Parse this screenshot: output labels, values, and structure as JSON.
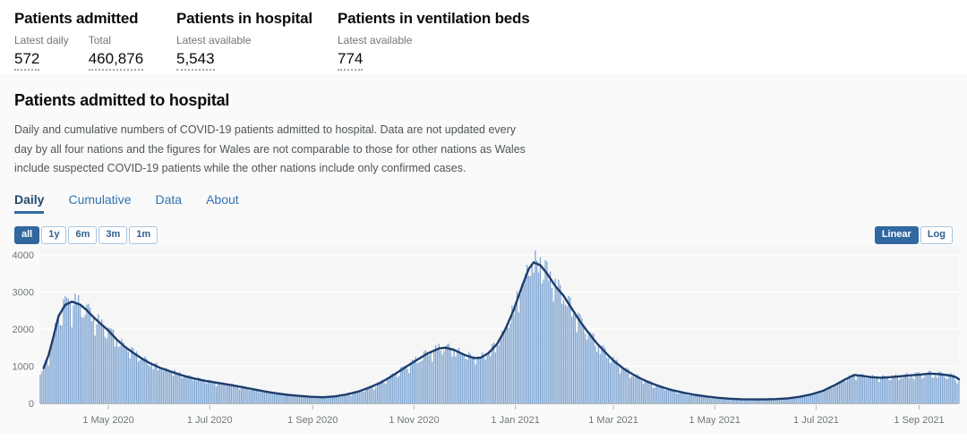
{
  "summary": {
    "cards": [
      {
        "title": "Patients admitted",
        "metrics": [
          {
            "label": "Latest daily",
            "value": "572"
          },
          {
            "label": "Total",
            "value": "460,876"
          }
        ]
      },
      {
        "title": "Patients in hospital",
        "metrics": [
          {
            "label": "Latest available",
            "value": "5,543"
          }
        ]
      },
      {
        "title": "Patients in ventilation beds",
        "metrics": [
          {
            "label": "Latest available",
            "value": "774"
          }
        ]
      }
    ]
  },
  "panel": {
    "title": "Patients admitted to hospital",
    "description": "Daily and cumulative numbers of COVID-19 patients admitted to hospital. Data are not updated every day by all four nations and the figures for Wales are not comparable to those for other nations as Wales include suspected COVID-19 patients while the other nations include only confirmed cases.",
    "tabs": [
      {
        "label": "Daily",
        "active": true
      },
      {
        "label": "Cumulative",
        "active": false
      },
      {
        "label": "Data",
        "active": false
      },
      {
        "label": "About",
        "active": false
      }
    ],
    "range_buttons": [
      {
        "label": "all",
        "active": true
      },
      {
        "label": "1y",
        "active": false
      },
      {
        "label": "6m",
        "active": false
      },
      {
        "label": "3m",
        "active": false
      },
      {
        "label": "1m",
        "active": false
      }
    ],
    "scale_buttons": [
      {
        "label": "Linear",
        "active": true
      },
      {
        "label": "Log",
        "active": false
      }
    ]
  },
  "colors": {
    "accent_active": "#31689f",
    "link_blue": "#3173b2",
    "tab_active_text": "#24496e",
    "tab_underline": "#2e6ca5"
  },
  "chart_data": {
    "type": "bar",
    "title": "Daily COVID-19 patients admitted to hospital (bars: daily, line: 7-day average)",
    "x_start": "2020-03-21",
    "x_end": "2021-09-25",
    "ylim": [
      0,
      4000
    ],
    "yticks": [
      0,
      1000,
      2000,
      3000,
      4000
    ],
    "xticks": [
      "2020-05-01",
      "2020-07-01",
      "2020-09-01",
      "2020-11-01",
      "2021-01-01",
      "2021-03-01",
      "2021-05-01",
      "2021-07-01",
      "2021-09-01"
    ],
    "xtick_labels": [
      "1 May 2020",
      "1 Jul 2020",
      "1 Sep 2020",
      "1 Nov 2020",
      "1 Jan 2021",
      "1 Mar 2021",
      "1 May 2021",
      "1 Jul 2021",
      "1 Sep 2021"
    ],
    "grid": true,
    "legend": "none",
    "colors": {
      "bars": "#7fa6d3",
      "line": "#1d3d6b",
      "plot_bg": "#f6f6f7",
      "grid": "#ffffff",
      "axis": "#b1b4b6",
      "tick_text": "#6e767a"
    },
    "series": [
      {
        "name": "7-day-average-line",
        "type": "line",
        "points": [
          [
            "2020-03-23",
            950
          ],
          [
            "2020-03-26",
            1300
          ],
          [
            "2020-03-29",
            1800
          ],
          [
            "2020-04-01",
            2350
          ],
          [
            "2020-04-05",
            2650
          ],
          [
            "2020-04-09",
            2740
          ],
          [
            "2020-04-14",
            2660
          ],
          [
            "2020-04-18",
            2510
          ],
          [
            "2020-04-22",
            2320
          ],
          [
            "2020-04-26",
            2160
          ],
          [
            "2020-05-01",
            1960
          ],
          [
            "2020-05-06",
            1720
          ],
          [
            "2020-05-11",
            1520
          ],
          [
            "2020-05-16",
            1360
          ],
          [
            "2020-05-21",
            1210
          ],
          [
            "2020-05-26",
            1080
          ],
          [
            "2020-06-01",
            960
          ],
          [
            "2020-06-08",
            850
          ],
          [
            "2020-06-15",
            745
          ],
          [
            "2020-06-22",
            665
          ],
          [
            "2020-06-29",
            600
          ],
          [
            "2020-07-06",
            550
          ],
          [
            "2020-07-13",
            500
          ],
          [
            "2020-07-20",
            440
          ],
          [
            "2020-07-27",
            380
          ],
          [
            "2020-08-03",
            320
          ],
          [
            "2020-08-10",
            270
          ],
          [
            "2020-08-17",
            230
          ],
          [
            "2020-08-24",
            200
          ],
          [
            "2020-08-31",
            175
          ],
          [
            "2020-09-07",
            165
          ],
          [
            "2020-09-14",
            185
          ],
          [
            "2020-09-21",
            235
          ],
          [
            "2020-09-28",
            310
          ],
          [
            "2020-10-05",
            425
          ],
          [
            "2020-10-12",
            560
          ],
          [
            "2020-10-19",
            745
          ],
          [
            "2020-10-26",
            950
          ],
          [
            "2020-11-02",
            1150
          ],
          [
            "2020-11-09",
            1340
          ],
          [
            "2020-11-16",
            1480
          ],
          [
            "2020-11-20",
            1500
          ],
          [
            "2020-11-25",
            1440
          ],
          [
            "2020-12-01",
            1310
          ],
          [
            "2020-12-07",
            1220
          ],
          [
            "2020-12-11",
            1230
          ],
          [
            "2020-12-16",
            1360
          ],
          [
            "2020-12-21",
            1600
          ],
          [
            "2020-12-26",
            2000
          ],
          [
            "2020-12-31",
            2520
          ],
          [
            "2021-01-05",
            3150
          ],
          [
            "2021-01-09",
            3620
          ],
          [
            "2021-01-12",
            3800
          ],
          [
            "2021-01-16",
            3720
          ],
          [
            "2021-01-20",
            3500
          ],
          [
            "2021-01-25",
            3160
          ],
          [
            "2021-01-30",
            2900
          ],
          [
            "2021-02-04",
            2550
          ],
          [
            "2021-02-09",
            2200
          ],
          [
            "2021-02-14",
            1900
          ],
          [
            "2021-02-19",
            1620
          ],
          [
            "2021-02-24",
            1380
          ],
          [
            "2021-03-01",
            1150
          ],
          [
            "2021-03-08",
            905
          ],
          [
            "2021-03-15",
            720
          ],
          [
            "2021-03-22",
            570
          ],
          [
            "2021-03-29",
            455
          ],
          [
            "2021-04-05",
            360
          ],
          [
            "2021-04-12",
            290
          ],
          [
            "2021-04-19",
            230
          ],
          [
            "2021-04-26",
            185
          ],
          [
            "2021-05-03",
            150
          ],
          [
            "2021-05-10",
            125
          ],
          [
            "2021-05-17",
            110
          ],
          [
            "2021-05-24",
            105
          ],
          [
            "2021-05-31",
            105
          ],
          [
            "2021-06-07",
            115
          ],
          [
            "2021-06-14",
            135
          ],
          [
            "2021-06-21",
            175
          ],
          [
            "2021-06-28",
            240
          ],
          [
            "2021-07-05",
            335
          ],
          [
            "2021-07-12",
            485
          ],
          [
            "2021-07-19",
            655
          ],
          [
            "2021-07-24",
            765
          ],
          [
            "2021-07-29",
            740
          ],
          [
            "2021-08-03",
            705
          ],
          [
            "2021-08-09",
            690
          ],
          [
            "2021-08-15",
            705
          ],
          [
            "2021-08-21",
            730
          ],
          [
            "2021-08-27",
            755
          ],
          [
            "2021-09-02",
            775
          ],
          [
            "2021-09-07",
            800
          ],
          [
            "2021-09-12",
            790
          ],
          [
            "2021-09-16",
            770
          ],
          [
            "2021-09-20",
            748
          ],
          [
            "2021-09-23",
            705
          ],
          [
            "2021-09-25",
            650
          ]
        ]
      },
      {
        "name": "daily-admissions-bars",
        "type": "bar",
        "note": "daily bars oscillate around the 7-day average line",
        "variation": {
          "wave1": 0.1,
          "wave2": 0.07,
          "weekday_offsets": [
            0.03,
            -0.02,
            0.06,
            0.02,
            0.04,
            -0.09,
            -0.05
          ],
          "clamp_min": 0.74,
          "clamp_max": 1.09
        }
      }
    ]
  }
}
